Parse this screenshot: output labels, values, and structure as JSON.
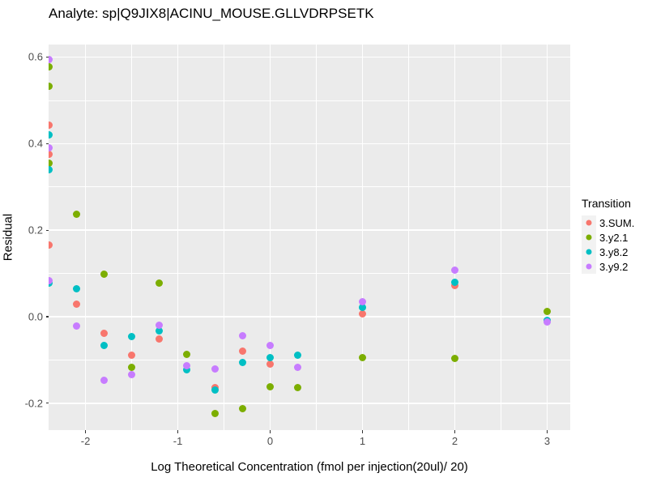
{
  "title": "Analyte: sp|Q9JIX8|ACINU_MOUSE.GLLVDRPSETK",
  "colors": {
    "panel_bg": "#EBEBEB",
    "grid": "#FFFFFF",
    "legend_key_bg": "#F2F2F2",
    "tick_text": "#4D4D4D",
    "text": "#000000"
  },
  "chart_data": {
    "type": "scatter",
    "title": "Analyte: sp|Q9JIX8|ACINU_MOUSE.GLLVDRPSETK",
    "xlabel": "Log Theoretical Concentration (fmol per injection(20ul)/ 20)",
    "ylabel": "Residual",
    "xlim": [
      -2.4,
      3.25
    ],
    "ylim": [
      -0.262,
      0.629
    ],
    "x_ticks": [
      -2,
      -1,
      0,
      1,
      2,
      3
    ],
    "x_tick_labels": [
      "-2",
      "-1",
      "0",
      "1",
      "2",
      "3"
    ],
    "y_ticks": [
      -0.2,
      0.0,
      0.2,
      0.4,
      0.6
    ],
    "y_tick_labels": [
      "-0.2",
      "0.0",
      "0.2",
      "0.4",
      "0.6"
    ],
    "grid": "major+minor",
    "legend_title": "Transition",
    "legend_position": "right",
    "series": [
      {
        "name": "3.SUM.",
        "color": "#F8766D",
        "points": [
          [
            -2.4,
            0.442
          ],
          [
            -2.4,
            0.376
          ],
          [
            -2.4,
            0.165
          ],
          [
            -2.1,
            0.029
          ],
          [
            -1.8,
            -0.039
          ],
          [
            -1.5,
            -0.089
          ],
          [
            -1.2,
            -0.051
          ],
          [
            -0.6,
            -0.164
          ],
          [
            -0.3,
            -0.08
          ],
          [
            0,
            -0.109
          ],
          [
            1,
            0.007
          ],
          [
            2,
            0.073
          ]
        ]
      },
      {
        "name": "3.y2.1",
        "color": "#7CAE00",
        "points": [
          [
            -2.4,
            0.577
          ],
          [
            -2.4,
            0.532
          ],
          [
            -2.4,
            0.354
          ],
          [
            -2.1,
            0.237
          ],
          [
            -1.8,
            0.099
          ],
          [
            -1.5,
            -0.116
          ],
          [
            -1.2,
            0.078
          ],
          [
            -0.9,
            -0.087
          ],
          [
            -0.6,
            -0.223
          ],
          [
            -0.3,
            -0.212
          ],
          [
            0,
            -0.162
          ],
          [
            0.3,
            -0.163
          ],
          [
            1,
            -0.095
          ],
          [
            2,
            -0.097
          ],
          [
            3,
            0.013
          ]
        ]
      },
      {
        "name": "3.y8.2",
        "color": "#00BFC4",
        "points": [
          [
            -2.4,
            0.42
          ],
          [
            -2.4,
            0.339
          ],
          [
            -2.4,
            0.077
          ],
          [
            -2.1,
            0.064
          ],
          [
            -1.8,
            -0.067
          ],
          [
            -1.5,
            -0.045
          ],
          [
            -1.2,
            -0.032
          ],
          [
            -0.9,
            -0.122
          ],
          [
            -0.6,
            -0.17
          ],
          [
            -0.3,
            -0.106
          ],
          [
            0,
            -0.094
          ],
          [
            0.3,
            -0.089
          ],
          [
            1,
            0.021
          ],
          [
            2,
            0.08
          ],
          [
            3,
            -0.008
          ]
        ]
      },
      {
        "name": "3.y9.2",
        "color": "#C77CFF",
        "points": [
          [
            -2.4,
            0.594
          ],
          [
            -2.4,
            0.39
          ],
          [
            -2.4,
            0.084
          ],
          [
            -2.1,
            -0.021
          ],
          [
            -1.8,
            -0.147
          ],
          [
            -1.5,
            -0.134
          ],
          [
            -1.2,
            -0.02
          ],
          [
            -0.9,
            -0.113
          ],
          [
            -0.6,
            -0.12
          ],
          [
            -0.3,
            -0.044
          ],
          [
            0,
            -0.067
          ],
          [
            0.3,
            -0.117
          ],
          [
            1,
            0.035
          ],
          [
            2,
            0.108
          ],
          [
            3,
            -0.012
          ]
        ]
      }
    ]
  }
}
